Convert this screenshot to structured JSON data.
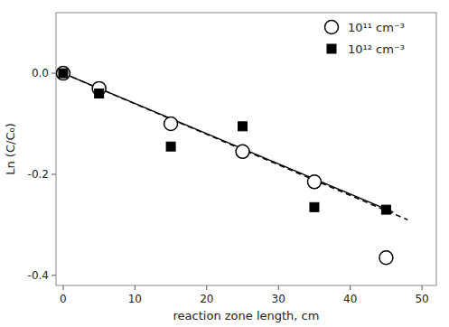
{
  "chart_data": {
    "type": "scatter",
    "xlabel": "reaction zone length, cm",
    "ylabel": "Ln (C/C₀)",
    "xlim": [
      -1,
      52
    ],
    "ylim": [
      -0.42,
      0.12
    ],
    "xticks": [
      0,
      10,
      20,
      30,
      40,
      50
    ],
    "yticks": [
      {
        "value": 0.0,
        "label": "0.0"
      },
      -0.2,
      -0.4
    ],
    "grid": false,
    "legend": "upper right",
    "series": [
      {
        "type": "line",
        "color": "black",
        "line_style": "solid",
        "x": [
          0,
          46
        ],
        "values": [
          0.0,
          -0.275
        ]
      },
      {
        "type": "line",
        "color": "black",
        "line_style": "dashed",
        "x": [
          0,
          48
        ],
        "values": [
          0.0,
          -0.29
        ]
      },
      {
        "type": "scatter",
        "name": "10¹¹ cm⁻³",
        "color": "black",
        "marker": "circle-open",
        "x": [
          0,
          5,
          15,
          25,
          35,
          45
        ],
        "values": [
          0.0,
          -0.03,
          -0.1,
          -0.155,
          -0.215,
          -0.365
        ]
      },
      {
        "type": "scatter",
        "name": "10¹² cm⁻³",
        "color": "black",
        "marker": "square",
        "x": [
          0,
          5,
          15,
          25,
          35,
          45
        ],
        "values": [
          0.0,
          -0.04,
          -0.145,
          -0.105,
          -0.265,
          -0.27
        ]
      }
    ]
  }
}
